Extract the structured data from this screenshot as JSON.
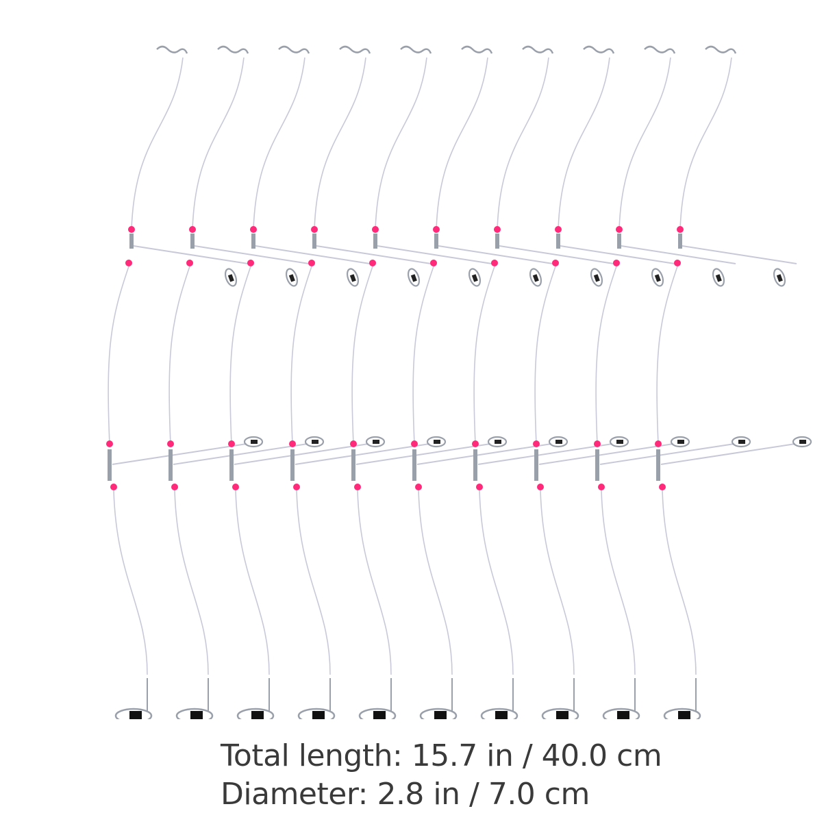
{
  "product": {
    "icon": "fishing-rig-image",
    "rig_count": 10,
    "bead_color": "#ff2a7a",
    "wire_color": "#c7c9d8",
    "metal_color": "#9aa0aa"
  },
  "captions": {
    "total_length": "Total length: 15.7 in / 40.0 cm",
    "diameter": "Diameter: 2.8 in / 7.0 cm"
  }
}
